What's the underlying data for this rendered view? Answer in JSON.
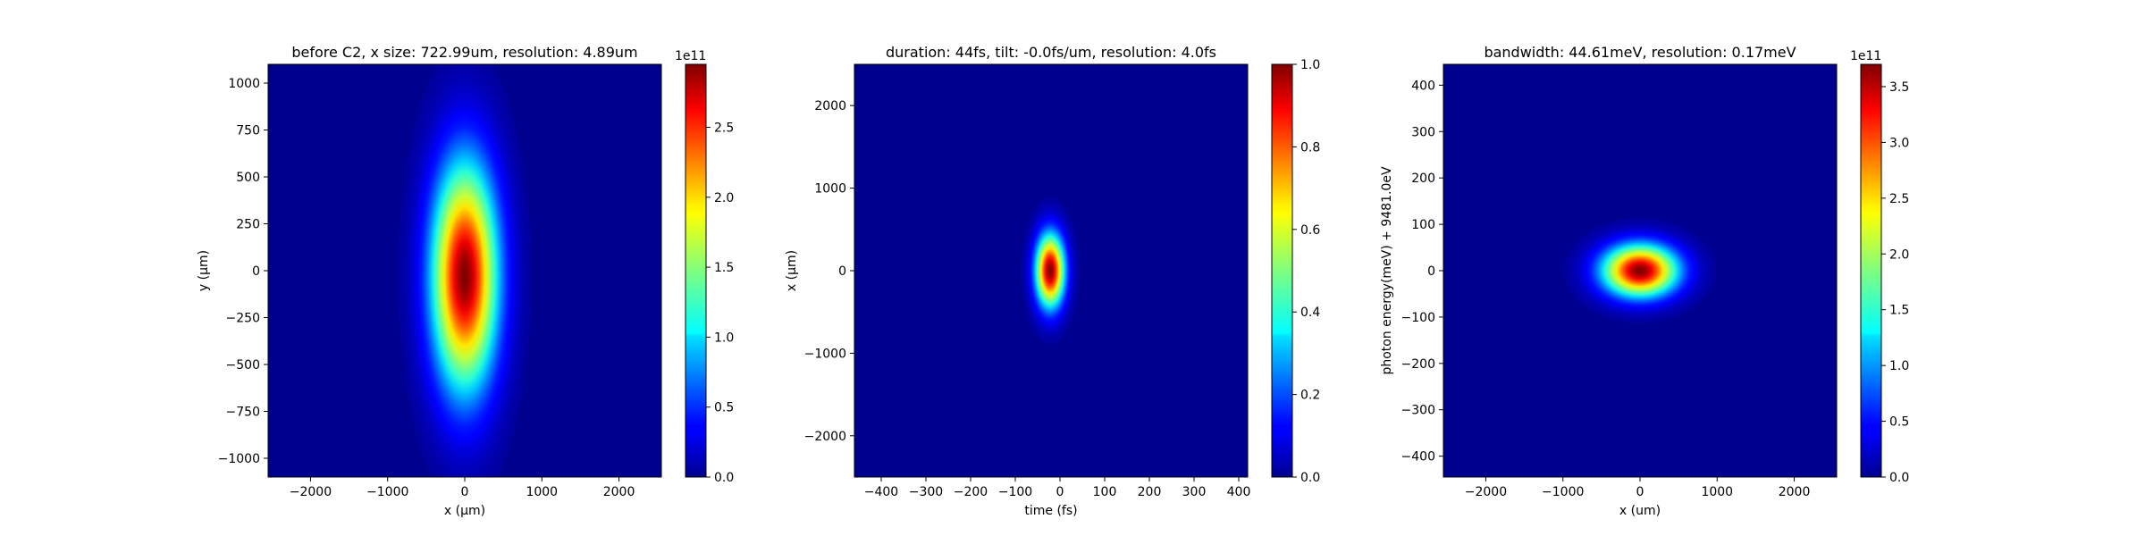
{
  "colormap": "jet",
  "chart_data": [
    {
      "type": "heatmap",
      "title": "before C2, x size: 722.99um, resolution: 4.89um",
      "xlabel": "x (μm)",
      "ylabel": "y (μm)",
      "xlim": [
        -2550,
        2550
      ],
      "ylim": [
        -1100,
        1100
      ],
      "xticks": [
        -2000,
        -1000,
        0,
        1000,
        2000
      ],
      "yticks": [
        -1000,
        -750,
        -500,
        -250,
        0,
        250,
        500,
        750,
        1000
      ],
      "xtick_labels": [
        "−2000",
        "−1000",
        "0",
        "1000",
        "2000"
      ],
      "ytick_labels": [
        "−1000",
        "−750",
        "−500",
        "−250",
        "0",
        "250",
        "500",
        "750",
        "1000"
      ],
      "peak": {
        "x": 0,
        "y": -30
      },
      "sigma": {
        "x": 290,
        "y": 410
      },
      "colorbar": {
        "range": [
          0,
          2.95
        ],
        "ticks": [
          0.0,
          0.5,
          1.0,
          1.5,
          2.0,
          2.5
        ],
        "tick_labels": [
          "0.0",
          "0.5",
          "1.0",
          "1.5",
          "2.0",
          "2.5"
        ],
        "offset_label": "1e11"
      }
    },
    {
      "type": "heatmap",
      "title": "duration: 44fs, tilt: -0.0fs/um, resolution: 4.0fs",
      "xlabel": "time (fs)",
      "ylabel": "x (μm)",
      "xlim": [
        -460,
        420
      ],
      "ylim": [
        -2500,
        2500
      ],
      "xticks": [
        -400,
        -300,
        -200,
        -100,
        0,
        100,
        200,
        300,
        400
      ],
      "yticks": [
        -2000,
        -1000,
        0,
        1000,
        2000
      ],
      "xtick_labels": [
        "−400",
        "−300",
        "−200",
        "−100",
        "0",
        "100",
        "200",
        "300",
        "400"
      ],
      "ytick_labels": [
        "−2000",
        "−1000",
        "0",
        "1000",
        "2000"
      ],
      "peak": {
        "x": -22,
        "y": 0
      },
      "sigma": {
        "x": 22,
        "y": 300
      },
      "colorbar": {
        "range": [
          0,
          1.0
        ],
        "ticks": [
          0.0,
          0.2,
          0.4,
          0.6,
          0.8,
          1.0
        ],
        "tick_labels": [
          "0.0",
          "0.2",
          "0.4",
          "0.6",
          "0.8",
          "1.0"
        ],
        "offset_label": ""
      }
    },
    {
      "type": "heatmap",
      "title": "bandwidth: 44.61meV, resolution: 0.17meV",
      "xlabel": "x (um)",
      "ylabel": "photon energy(meV) + 9481.0eV",
      "xlim": [
        -2550,
        2550
      ],
      "ylim": [
        -445,
        445
      ],
      "xticks": [
        -2000,
        -1000,
        0,
        1000,
        2000
      ],
      "yticks": [
        -400,
        -300,
        -200,
        -100,
        0,
        100,
        200,
        300,
        400
      ],
      "xtick_labels": [
        "−2000",
        "−1000",
        "0",
        "1000",
        "2000"
      ],
      "ytick_labels": [
        "−400",
        "−300",
        "−200",
        "−100",
        "0",
        "100",
        "200",
        "300",
        "400"
      ],
      "peak": {
        "x": 0,
        "y": 0
      },
      "sigma": {
        "x": 330,
        "y": 38
      },
      "colorbar": {
        "range": [
          0,
          3.7
        ],
        "ticks": [
          0.0,
          0.5,
          1.0,
          1.5,
          2.0,
          2.5,
          3.0,
          3.5
        ],
        "tick_labels": [
          "0.0",
          "0.5",
          "1.0",
          "1.5",
          "2.0",
          "2.5",
          "3.0",
          "3.5"
        ],
        "offset_label": "1e11"
      }
    }
  ]
}
